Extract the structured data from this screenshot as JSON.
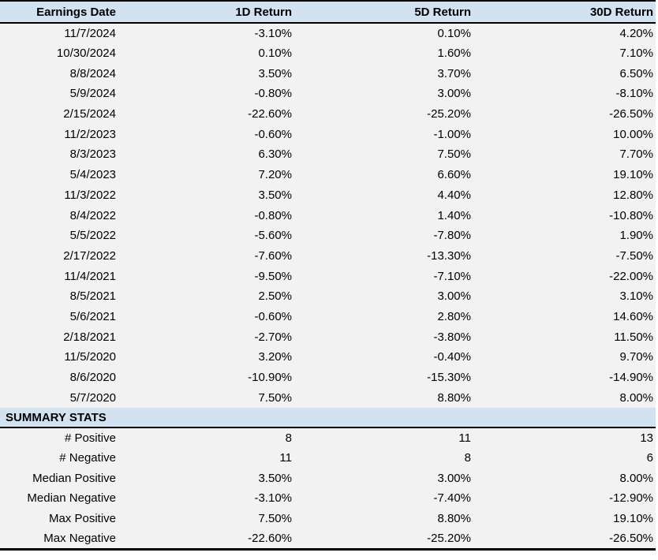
{
  "chart_data": {
    "type": "table",
    "columns": [
      "Earnings Date",
      "1D Return",
      "5D Return",
      "30D Return"
    ],
    "rows": [
      [
        "11/7/2024",
        "-3.10%",
        "0.10%",
        "4.20%"
      ],
      [
        "10/30/2024",
        "0.10%",
        "1.60%",
        "7.10%"
      ],
      [
        "8/8/2024",
        "3.50%",
        "3.70%",
        "6.50%"
      ],
      [
        "5/9/2024",
        "-0.80%",
        "3.00%",
        "-8.10%"
      ],
      [
        "2/15/2024",
        "-22.60%",
        "-25.20%",
        "-26.50%"
      ],
      [
        "11/2/2023",
        "-0.60%",
        "-1.00%",
        "10.00%"
      ],
      [
        "8/3/2023",
        "6.30%",
        "7.50%",
        "7.70%"
      ],
      [
        "5/4/2023",
        "7.20%",
        "6.60%",
        "19.10%"
      ],
      [
        "11/3/2022",
        "3.50%",
        "4.40%",
        "12.80%"
      ],
      [
        "8/4/2022",
        "-0.80%",
        "1.40%",
        "-10.80%"
      ],
      [
        "5/5/2022",
        "-5.60%",
        "-7.80%",
        "1.90%"
      ],
      [
        "2/17/2022",
        "-7.60%",
        "-13.30%",
        "-7.50%"
      ],
      [
        "11/4/2021",
        "-9.50%",
        "-7.10%",
        "-22.00%"
      ],
      [
        "8/5/2021",
        "2.50%",
        "3.00%",
        "3.10%"
      ],
      [
        "5/6/2021",
        "-0.60%",
        "2.80%",
        "14.60%"
      ],
      [
        "2/18/2021",
        "-2.70%",
        "-3.80%",
        "11.50%"
      ],
      [
        "11/5/2020",
        "3.20%",
        "-0.40%",
        "9.70%"
      ],
      [
        "8/6/2020",
        "-10.90%",
        "-15.30%",
        "-14.90%"
      ],
      [
        "5/7/2020",
        "7.50%",
        "8.80%",
        "8.00%"
      ]
    ],
    "summary_title": "SUMMARY STATS",
    "summary_rows": [
      [
        "# Positive",
        "8",
        "11",
        "13"
      ],
      [
        "# Negative",
        "11",
        "8",
        "6"
      ],
      [
        "Median Positive",
        "3.50%",
        "3.00%",
        "8.00%"
      ],
      [
        "Median Negative",
        "-3.10%",
        "-7.40%",
        "-12.90%"
      ],
      [
        "Max Positive",
        "7.50%",
        "8.80%",
        "19.10%"
      ],
      [
        "Max Negative",
        "-22.60%",
        "-25.20%",
        "-26.50%"
      ]
    ]
  },
  "colors": {
    "header_bg": "#d2e2f0",
    "row_bg": "#f2f2f2",
    "border": "#000000",
    "text": "#000000"
  }
}
